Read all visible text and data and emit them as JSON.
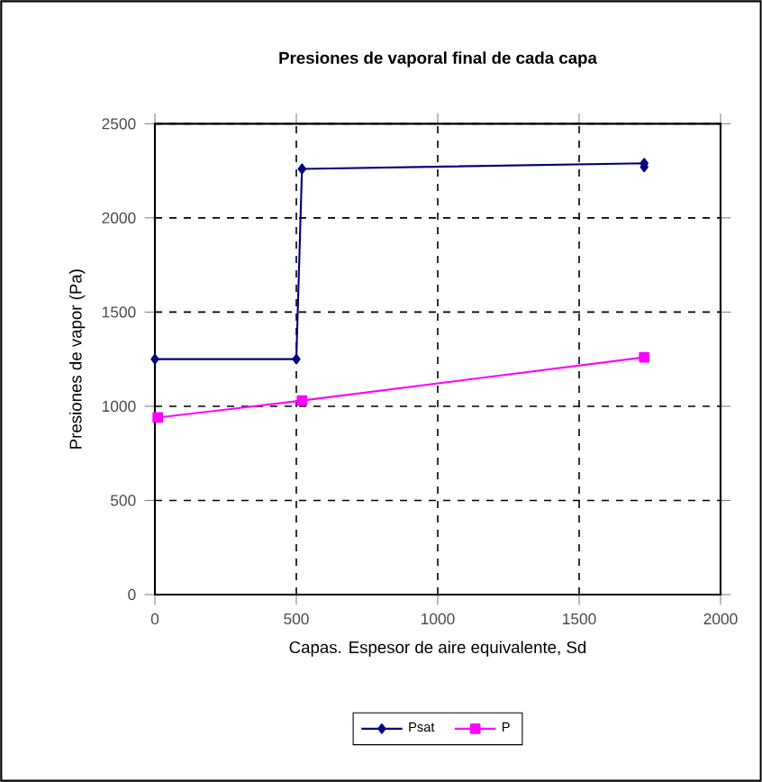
{
  "chart_data": {
    "type": "line",
    "title": "Presiones de vaporal final de cada capa",
    "xlabel": "Capas. Espesor de aire equivalente, Sd",
    "ylabel": "Presiones de vapor (Pa)",
    "xlim": [
      0,
      2000
    ],
    "xticks": [
      0,
      500,
      1000,
      1500,
      2000
    ],
    "ylim": [
      0,
      2500
    ],
    "yticks": [
      0,
      500,
      1000,
      1500,
      2000,
      2500
    ],
    "grid": true,
    "legend": "bottom",
    "series": [
      {
        "name": "Psat",
        "color": "#000080",
        "marker": "diamond",
        "x": [
          0,
          500,
          520,
          1730,
          1730
        ],
        "values": [
          1250,
          1250,
          2260,
          2290,
          2270
        ]
      },
      {
        "name": "P",
        "color": "#ff00ff",
        "marker": "square",
        "x": [
          10,
          520,
          1730
        ],
        "values": [
          940,
          1030,
          1260
        ]
      }
    ]
  }
}
